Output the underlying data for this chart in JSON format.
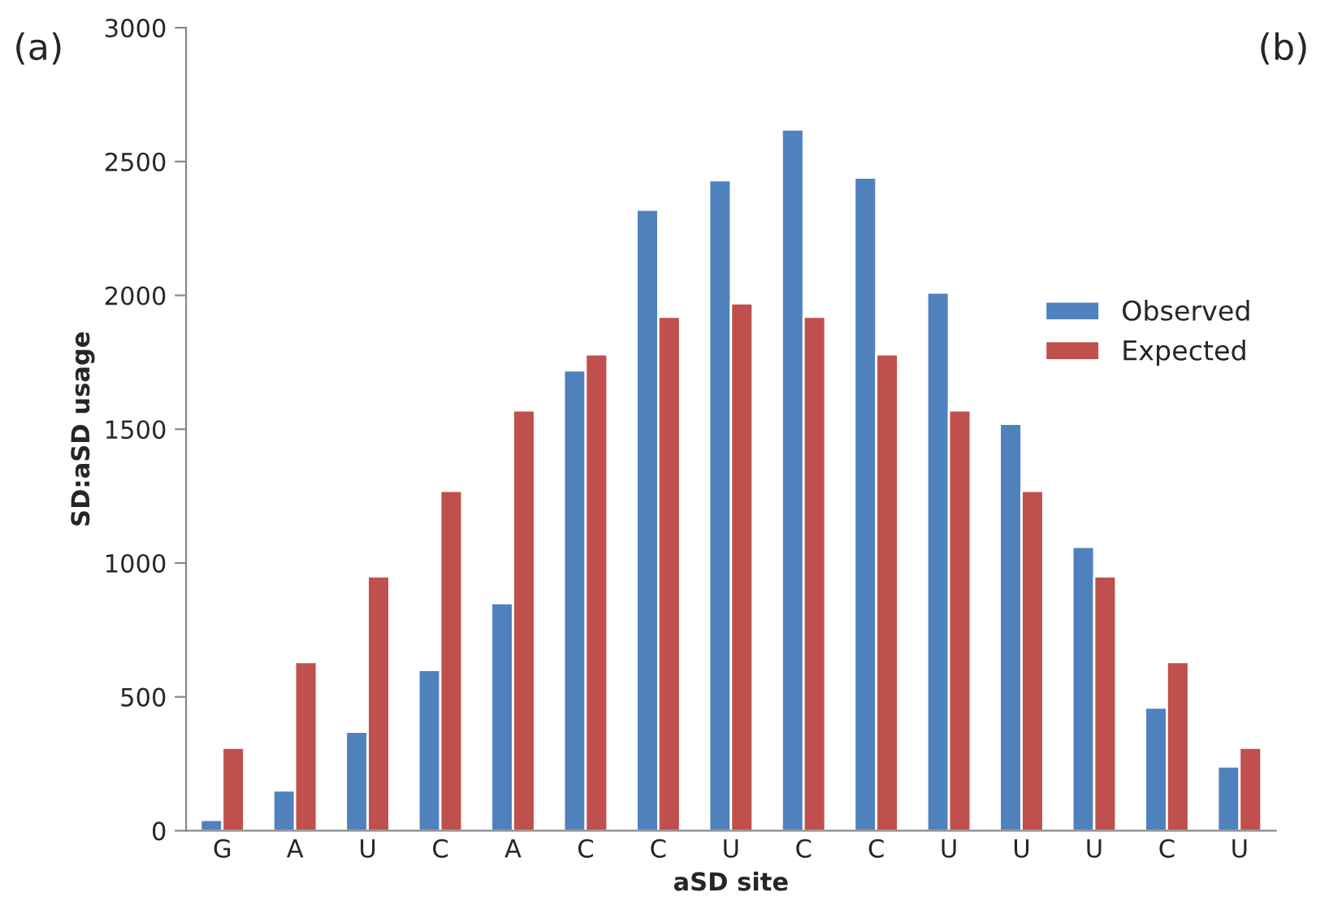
{
  "chart_data": {
    "type": "bar",
    "xlabel": "aSD site",
    "ylabel": "SD:aSD usage",
    "categories": [
      "G",
      "A",
      "U",
      "C",
      "A",
      "C",
      "C",
      "U",
      "C",
      "C",
      "U",
      "U",
      "U",
      "C",
      "U"
    ],
    "series": [
      {
        "name": "Observed",
        "color": "#4f81bd",
        "values": [
          40,
          150,
          370,
          600,
          850,
          1720,
          2320,
          2430,
          2620,
          2440,
          2010,
          1520,
          1060,
          460,
          240
        ]
      },
      {
        "name": "Expected",
        "color": "#c0504d",
        "values": [
          310,
          630,
          950,
          1270,
          1570,
          1780,
          1920,
          1970,
          1920,
          1780,
          1570,
          1270,
          950,
          630,
          310
        ]
      }
    ],
    "ylim": [
      0,
      3000
    ],
    "yticks": [
      0,
      500,
      1000,
      1500,
      2000,
      2500,
      3000
    ],
    "annotations": [
      "(a)",
      "(b)"
    ],
    "legend": "right",
    "grid": false
  }
}
